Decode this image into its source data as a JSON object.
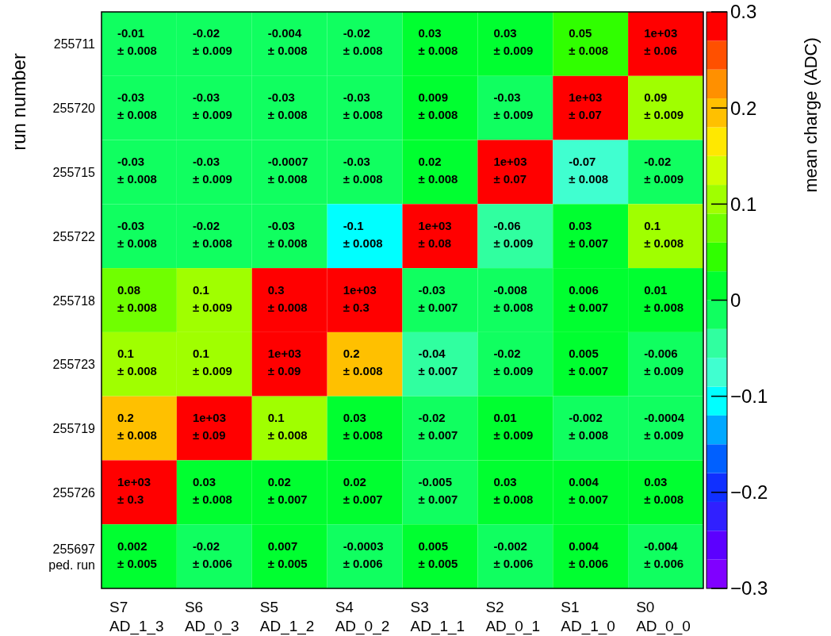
{
  "chart_data": {
    "type": "heatmap",
    "ylabel": "run number",
    "clabel": "mean charge (ADC)",
    "categories": [
      "S7\nAD_1_3",
      "S6\nAD_0_3",
      "S5\nAD_1_2",
      "S4\nAD_0_2",
      "S3\nAD_1_1",
      "S2\nAD_0_1",
      "S1\nAD_1_0",
      "S0\nAD_0_0"
    ],
    "y_categories": [
      "255711",
      "255720",
      "255715",
      "255722",
      "255718",
      "255723",
      "255719",
      "255726",
      "255697\nped. run"
    ],
    "cells": [
      [
        -0.01,
        -0.02,
        -0.004,
        -0.02,
        0.03,
        0.03,
        0.05,
        1000
      ],
      [
        -0.03,
        -0.03,
        -0.03,
        -0.03,
        0.009,
        -0.03,
        1000,
        0.09
      ],
      [
        -0.03,
        -0.03,
        -0.0007,
        -0.03,
        0.02,
        1000,
        -0.07,
        -0.02
      ],
      [
        -0.03,
        -0.02,
        -0.03,
        -0.1,
        1000,
        -0.06,
        0.03,
        0.1
      ],
      [
        0.08,
        0.1,
        0.3,
        1000,
        -0.03,
        -0.008,
        0.006,
        0.01
      ],
      [
        0.1,
        0.1,
        1000,
        0.2,
        -0.04,
        -0.02,
        0.005,
        -0.006
      ],
      [
        0.2,
        1000,
        0.1,
        0.03,
        -0.02,
        0.01,
        -0.002,
        -0.0004
      ],
      [
        1000,
        0.03,
        0.02,
        0.02,
        -0.005,
        0.03,
        0.004,
        0.03
      ],
      [
        0.002,
        -0.02,
        0.007,
        -0.0003,
        0.005,
        -0.002,
        0.004,
        -0.004
      ]
    ],
    "cell_labels": [
      [
        "-0.01\n± 0.008",
        "-0.02\n± 0.009",
        "-0.004\n± 0.008",
        "-0.02\n± 0.008",
        "0.03\n± 0.008",
        "0.03\n± 0.009",
        "0.05\n± 0.008",
        "1e+03\n± 0.06"
      ],
      [
        "-0.03\n± 0.008",
        "-0.03\n± 0.009",
        "-0.03\n± 0.008",
        "-0.03\n± 0.008",
        "0.009\n± 0.008",
        "-0.03\n± 0.009",
        "1e+03\n± 0.07",
        "0.09\n± 0.009"
      ],
      [
        "-0.03\n± 0.008",
        "-0.03\n± 0.009",
        "-0.0007\n± 0.008",
        "-0.03\n± 0.008",
        "0.02\n± 0.008",
        "1e+03\n± 0.07",
        "-0.07\n± 0.008",
        "-0.02\n± 0.009"
      ],
      [
        "-0.03\n± 0.008",
        "-0.02\n± 0.008",
        "-0.03\n± 0.008",
        "-0.1\n± 0.008",
        "1e+03\n± 0.08",
        "-0.06\n± 0.009",
        "0.03\n± 0.007",
        "0.1\n± 0.008"
      ],
      [
        "0.08\n± 0.008",
        "0.1\n± 0.009",
        "0.3\n± 0.008",
        "1e+03\n± 0.3",
        "-0.03\n± 0.007",
        "-0.008\n± 0.008",
        "0.006\n± 0.007",
        "0.01\n± 0.008"
      ],
      [
        "0.1\n± 0.008",
        "0.1\n± 0.009",
        "1e+03\n± 0.09",
        "0.2\n± 0.008",
        "-0.04\n± 0.007",
        "-0.02\n± 0.009",
        "0.005\n± 0.007",
        "-0.006\n± 0.009"
      ],
      [
        "0.2\n± 0.008",
        "1e+03\n± 0.09",
        "0.1\n± 0.008",
        "0.03\n± 0.008",
        "-0.02\n± 0.007",
        "0.01\n± 0.009",
        "-0.002\n± 0.008",
        "-0.0004\n± 0.009"
      ],
      [
        "1e+03\n± 0.3",
        "0.03\n± 0.008",
        "0.02\n± 0.007",
        "0.02\n± 0.007",
        "-0.005\n± 0.007",
        "0.03\n± 0.008",
        "0.004\n± 0.007",
        "0.03\n± 0.008"
      ],
      [
        "0.002\n± 0.005",
        "-0.02\n± 0.006",
        "0.007\n± 0.005",
        "-0.0003\n± 0.006",
        "0.005\n± 0.005",
        "-0.002\n± 0.006",
        "0.004\n± 0.006",
        "-0.004\n± 0.006"
      ]
    ],
    "clim": [
      -0.3,
      0.3
    ],
    "cticks": [
      {
        "value": -0.3,
        "label": "−0.3"
      },
      {
        "value": -0.2,
        "label": "−0.2"
      },
      {
        "value": -0.1,
        "label": "−0.1"
      },
      0,
      0.1,
      0.2,
      0.3
    ]
  }
}
